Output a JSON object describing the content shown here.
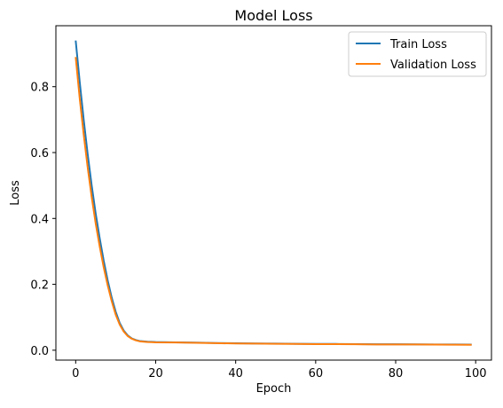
{
  "chart_data": {
    "type": "line",
    "title": "Model Loss",
    "xlabel": "Epoch",
    "ylabel": "Loss",
    "xlim": [
      -4.95,
      103.95
    ],
    "ylim": [
      -0.03,
      0.985
    ],
    "xticks": [
      0,
      20,
      40,
      60,
      80,
      100
    ],
    "yticks": [
      0.0,
      0.2,
      0.4,
      0.6,
      0.8
    ],
    "xtick_labels": [
      "0",
      "20",
      "40",
      "60",
      "80",
      "100"
    ],
    "ytick_labels": [
      "0.0",
      "0.2",
      "0.4",
      "0.6",
      "0.8"
    ],
    "grid": false,
    "legend_position": "upper right",
    "series": [
      {
        "name": "Train Loss",
        "color": "#1f77b4",
        "x": [
          0,
          1,
          2,
          3,
          4,
          5,
          6,
          7,
          8,
          9,
          10,
          11,
          12,
          13,
          14,
          15,
          16,
          17,
          18,
          19,
          20,
          25,
          30,
          35,
          40,
          45,
          50,
          55,
          60,
          65,
          70,
          75,
          80,
          85,
          90,
          95,
          99
        ],
        "y": [
          0.94,
          0.815,
          0.7,
          0.595,
          0.5,
          0.415,
          0.34,
          0.272,
          0.212,
          0.16,
          0.117,
          0.083,
          0.06,
          0.045,
          0.036,
          0.031,
          0.028,
          0.027,
          0.026,
          0.0255,
          0.025,
          0.024,
          0.023,
          0.022,
          0.021,
          0.0205,
          0.02,
          0.0195,
          0.019,
          0.019,
          0.0185,
          0.018,
          0.018,
          0.0178,
          0.0175,
          0.0173,
          0.017
        ]
      },
      {
        "name": "Validation Loss",
        "color": "#ff7f0e",
        "x": [
          0,
          1,
          2,
          3,
          4,
          5,
          6,
          7,
          8,
          9,
          10,
          11,
          12,
          13,
          14,
          15,
          16,
          17,
          18,
          19,
          20,
          25,
          30,
          35,
          40,
          45,
          50,
          55,
          60,
          65,
          70,
          75,
          80,
          85,
          90,
          95,
          99
        ],
        "y": [
          0.89,
          0.765,
          0.655,
          0.555,
          0.465,
          0.385,
          0.315,
          0.252,
          0.197,
          0.149,
          0.108,
          0.078,
          0.057,
          0.043,
          0.035,
          0.03,
          0.027,
          0.026,
          0.025,
          0.0245,
          0.024,
          0.0235,
          0.0225,
          0.0215,
          0.0205,
          0.02,
          0.0195,
          0.019,
          0.0185,
          0.0185,
          0.018,
          0.0175,
          0.0175,
          0.0173,
          0.017,
          0.0168,
          0.0165
        ]
      }
    ]
  }
}
